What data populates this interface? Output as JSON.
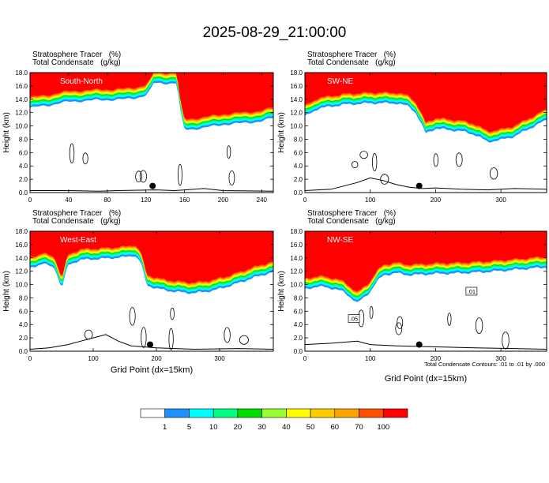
{
  "title": "2025-08-29_21:00:00",
  "colors": {
    "levels": [
      "#ffffff",
      "#1e90ff",
      "#00ffff",
      "#00ff80",
      "#00dd00",
      "#99ff33",
      "#ffff00",
      "#ffcc00",
      "#ffa500",
      "#ff5000",
      "#ff0000"
    ],
    "contour": "#000000",
    "marker": "#000000"
  },
  "chart_data": [
    {
      "type": "heatmap",
      "panel": "South-North",
      "label_line1": "Stratosphere Tracer   (%)",
      "label_line2": "Total Condensate   (g/kg)",
      "ylabel": "Height (km)",
      "xlabel": "",
      "xlim": [
        0,
        252
      ],
      "ylim": [
        0,
        18
      ],
      "xticks": [
        0,
        40,
        80,
        120,
        160,
        200,
        240
      ],
      "yticks": [
        0.0,
        2.0,
        4.0,
        6.0,
        8.0,
        10.0,
        12.0,
        14.0,
        16.0,
        18.0
      ],
      "tracer_top": [
        [
          0,
          14.3
        ],
        [
          10,
          14.5
        ],
        [
          20,
          14.7
        ],
        [
          30,
          15.0
        ],
        [
          40,
          15.2
        ],
        [
          60,
          15.4
        ],
        [
          80,
          15.5
        ],
        [
          100,
          15.6
        ],
        [
          110,
          15.8
        ],
        [
          120,
          16.2
        ],
        [
          125,
          17.0
        ],
        [
          128,
          18.0
        ],
        [
          152,
          18.0
        ],
        [
          156,
          13.5
        ],
        [
          160,
          11.0
        ],
        [
          180,
          11.3
        ],
        [
          200,
          11.8
        ],
        [
          220,
          12.0
        ],
        [
          240,
          12.3
        ],
        [
          252,
          12.8
        ]
      ],
      "terrain": [
        [
          0,
          0.3
        ],
        [
          40,
          0.3
        ],
        [
          70,
          0.2
        ],
        [
          90,
          0.3
        ],
        [
          130,
          0.4
        ],
        [
          150,
          0.3
        ],
        [
          180,
          0.6
        ],
        [
          200,
          0.3
        ],
        [
          252,
          0.2
        ]
      ],
      "marker": [
        127,
        1.0
      ]
    },
    {
      "type": "heatmap",
      "panel": "SW-NE",
      "label_line1": "Stratosphere Tracer   (%)",
      "label_line2": "Total Condensate   (g/kg)",
      "ylabel": "Height (km)",
      "xlabel": "",
      "xlim": [
        0,
        370
      ],
      "ylim": [
        0,
        18
      ],
      "xticks": [
        0,
        100,
        200,
        300
      ],
      "yticks": [
        0.0,
        2.0,
        4.0,
        6.0,
        8.0,
        10.0,
        12.0,
        14.0,
        16.0,
        18.0
      ],
      "tracer_top": [
        [
          0,
          13.0
        ],
        [
          20,
          14.2
        ],
        [
          60,
          14.8
        ],
        [
          100,
          15.0
        ],
        [
          140,
          15.0
        ],
        [
          160,
          14.5
        ],
        [
          170,
          13.5
        ],
        [
          175,
          12.5
        ],
        [
          185,
          10.5
        ],
        [
          200,
          11.2
        ],
        [
          220,
          11.0
        ],
        [
          240,
          10.8
        ],
        [
          260,
          10.3
        ],
        [
          280,
          9.2
        ],
        [
          300,
          9.5
        ],
        [
          320,
          10.0
        ],
        [
          340,
          11.0
        ],
        [
          360,
          12.0
        ],
        [
          370,
          12.5
        ]
      ],
      "terrain": [
        [
          0,
          0.3
        ],
        [
          40,
          0.5
        ],
        [
          80,
          1.5
        ],
        [
          100,
          2.2
        ],
        [
          120,
          1.8
        ],
        [
          140,
          1.2
        ],
        [
          160,
          0.8
        ],
        [
          180,
          0.6
        ],
        [
          200,
          0.7
        ],
        [
          240,
          0.5
        ],
        [
          280,
          0.4
        ],
        [
          320,
          0.6
        ],
        [
          370,
          0.5
        ]
      ],
      "marker": [
        175,
        1.0
      ]
    },
    {
      "type": "heatmap",
      "panel": "West-East",
      "label_line1": "Stratosphere Tracer   (%)",
      "label_line2": "Total Condensate   (g/kg)",
      "ylabel": "Height (km)",
      "xlabel": "Grid Point (dx=15km)",
      "xlim": [
        0,
        385
      ],
      "ylim": [
        0,
        18
      ],
      "xticks": [
        0,
        100,
        200,
        300
      ],
      "yticks": [
        0.0,
        2.0,
        4.0,
        6.0,
        8.0,
        10.0,
        12.0,
        14.0,
        16.0,
        18.0
      ],
      "tracer_top": [
        [
          0,
          14.0
        ],
        [
          20,
          14.8
        ],
        [
          40,
          14.0
        ],
        [
          50,
          11.0
        ],
        [
          60,
          14.5
        ],
        [
          80,
          15.3
        ],
        [
          120,
          15.5
        ],
        [
          150,
          15.7
        ],
        [
          165,
          16.0
        ],
        [
          175,
          15.0
        ],
        [
          185,
          11.5
        ],
        [
          200,
          11.0
        ],
        [
          230,
          10.5
        ],
        [
          260,
          10.3
        ],
        [
          290,
          10.7
        ],
        [
          320,
          11.5
        ],
        [
          350,
          12.5
        ],
        [
          385,
          13.5
        ]
      ],
      "terrain": [
        [
          0,
          0.3
        ],
        [
          30,
          0.5
        ],
        [
          60,
          1.0
        ],
        [
          80,
          1.5
        ],
        [
          100,
          2.0
        ],
        [
          120,
          2.5
        ],
        [
          140,
          1.5
        ],
        [
          160,
          0.8
        ],
        [
          200,
          0.5
        ],
        [
          260,
          0.3
        ],
        [
          330,
          0.4
        ],
        [
          385,
          0.3
        ]
      ],
      "marker": [
        190,
        1.0
      ]
    },
    {
      "type": "heatmap",
      "panel": "NW-SE",
      "label_line1": "Stratosphere Tracer   (%)",
      "label_line2": "Total Condensate   (g/kg)",
      "ylabel": "Height (km)",
      "xlabel": "Grid Point (dx=15km)",
      "xlim": [
        0,
        370
      ],
      "ylim": [
        0,
        18
      ],
      "xticks": [
        0,
        100,
        200,
        300
      ],
      "yticks": [
        0.0,
        2.0,
        4.0,
        6.0,
        8.0,
        10.0,
        12.0,
        14.0,
        16.0,
        18.0
      ],
      "tracer_top": [
        [
          0,
          11.0
        ],
        [
          30,
          11.3
        ],
        [
          60,
          10.5
        ],
        [
          80,
          8.8
        ],
        [
          100,
          10.5
        ],
        [
          110,
          12.0
        ],
        [
          120,
          13.0
        ],
        [
          140,
          13.3
        ],
        [
          160,
          13.0
        ],
        [
          200,
          13.2
        ],
        [
          240,
          13.3
        ],
        [
          280,
          13.5
        ],
        [
          320,
          13.8
        ],
        [
          370,
          14.2
        ]
      ],
      "terrain": [
        [
          0,
          1.0
        ],
        [
          40,
          1.2
        ],
        [
          80,
          1.5
        ],
        [
          100,
          1.0
        ],
        [
          140,
          0.8
        ],
        [
          180,
          0.7
        ],
        [
          220,
          0.6
        ],
        [
          260,
          0.5
        ],
        [
          320,
          0.4
        ],
        [
          370,
          0.3
        ]
      ],
      "marker": [
        175,
        1.0
      ],
      "contour_labels": [
        ".01",
        ".05"
      ]
    }
  ],
  "contour_note": "Total Condensate Contours: .01 to .01 by .000",
  "colorbar": {
    "labels": [
      "1",
      "5",
      "10",
      "20",
      "30",
      "40",
      "50",
      "60",
      "70",
      "100"
    ]
  }
}
